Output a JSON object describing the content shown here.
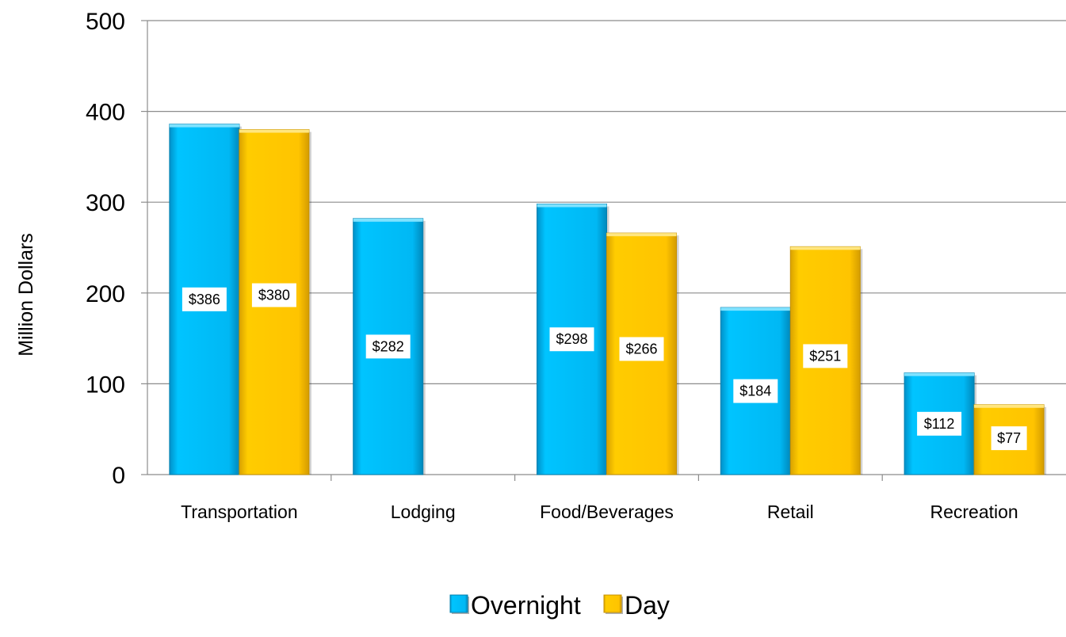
{
  "chart_data": {
    "type": "bar",
    "title": "",
    "xlabel": "",
    "ylabel": "Million Dollars",
    "ylim": [
      0,
      500
    ],
    "yticks": [
      "0",
      "100",
      "200",
      "300",
      "400",
      "500"
    ],
    "categories": [
      "Transportation",
      "Lodging",
      "Food/Beverages",
      "Retail",
      "Recreation"
    ],
    "series": [
      {
        "name": "Overnight",
        "values": [
          386,
          282,
          298,
          184,
          112
        ],
        "labels": [
          "$386",
          "$282",
          "$298",
          "$184",
          "$112"
        ],
        "color": "#00BFFF"
      },
      {
        "name": "Day",
        "values": [
          380,
          null,
          266,
          251,
          77
        ],
        "labels": [
          "$380",
          null,
          "$266",
          "$251",
          "$77"
        ],
        "color": "#FFC800"
      }
    ],
    "grid": true,
    "legend_position": "bottom"
  }
}
